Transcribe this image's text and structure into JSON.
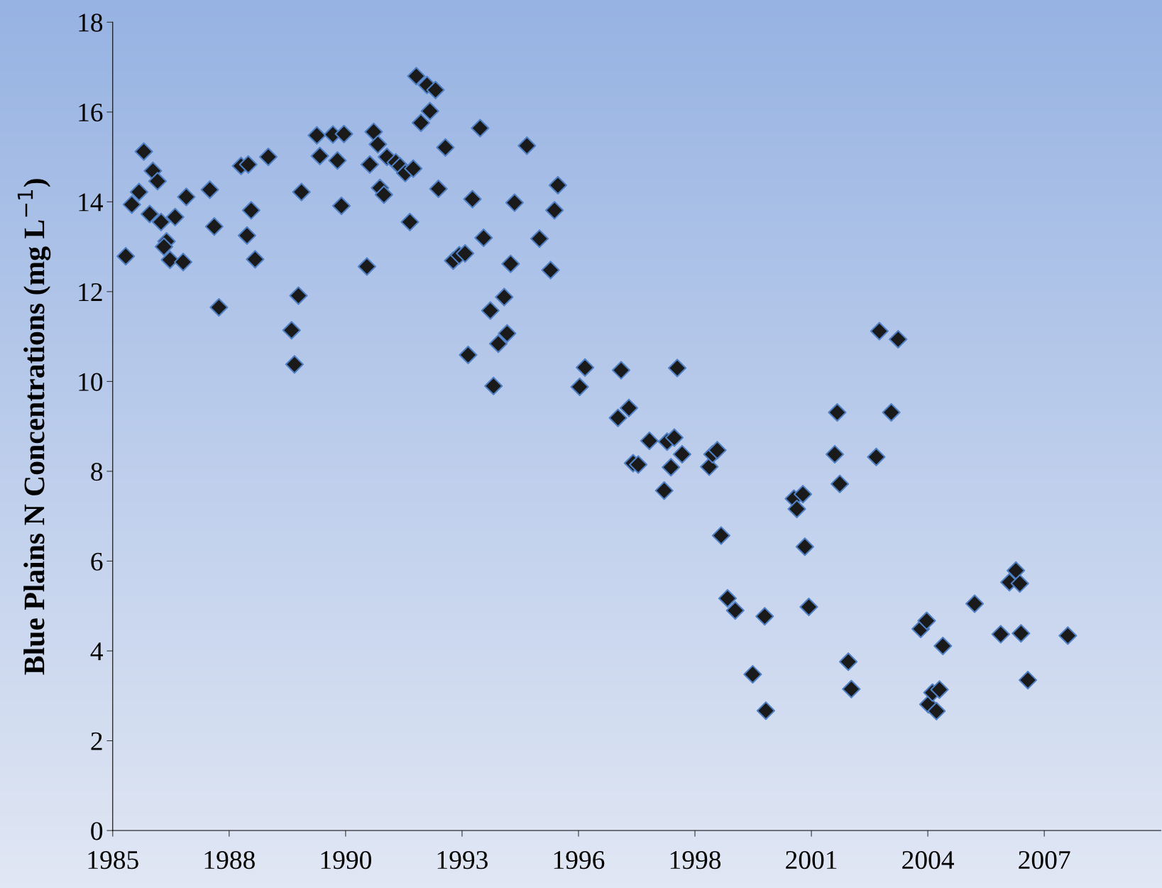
{
  "chart_data": {
    "type": "scatter",
    "ylabel": "Blue Plains N Concentrations (mg L$^{−1}$)",
    "x": [
      "1985-08-03",
      "1985-09-24",
      "1985-11-25",
      "1986-01-05",
      "1986-02-25",
      "1986-03-24",
      "1986-05-03",
      "1986-06-02",
      "1986-07-19",
      "1986-06-27",
      "1986-08-18",
      "1986-10-01",
      "1986-12-09",
      "1987-01-05",
      "1987-07-26",
      "1987-09-02",
      "1987-10-12",
      "1988-04-19",
      "1988-06-20",
      "1988-06-09",
      "1988-07-15",
      "1988-08-18",
      "1988-12-09",
      "1989-06-27",
      "1989-07-22",
      "1989-08-25",
      "1989-09-20",
      "1990-01-30",
      "1990-02-25",
      "1990-06-17",
      "1990-07-26",
      "1990-08-29",
      "1990-09-20",
      "1991-04-05",
      "1991-04-30",
      "1991-06-02",
      "1991-07-08",
      "1991-07-26",
      "1991-08-29",
      "1991-09-24",
      "1991-12-09",
      "1992-01-15",
      "1992-02-28",
      "1992-04-08",
      "1992-05-07",
      "1992-06-02",
      "1992-07-12",
      "1992-09-02",
      "1992-09-27",
      "1992-11-14",
      "1992-12-09",
      "1993-02-07",
      "1993-04-15",
      "1993-06-06",
      "1993-07-26",
      "1993-08-21",
      "1993-09-27",
      "1993-12-02",
      "1994-01-01",
      "1994-02-28",
      "1994-03-27",
      "1994-05-07",
      "1994-06-27",
      "1994-07-22",
      "1994-08-21",
      "1994-09-24",
      "1995-01-08",
      "1995-04-26",
      "1995-07-30",
      "1995-09-02",
      "1995-10-01",
      "1996-04-05",
      "1996-05-21",
      "1997-02-28",
      "1997-03-27",
      "1997-06-02",
      "1997-07-08",
      "1997-08-21",
      "1997-11-25",
      "1998-04-01",
      "1998-04-26",
      "1998-05-29",
      "1998-06-27",
      "1998-07-22",
      "1998-09-02",
      "1999-04-23",
      "1999-05-21",
      "1999-07-01",
      "1999-08-03",
      "1999-09-27",
      "1999-12-02",
      "2000-04-30",
      "2000-08-11",
      "2000-08-21",
      "2001-04-19",
      "2001-05-14",
      "2001-07-05",
      "2001-07-22",
      "2001-08-25",
      "2002-04-05",
      "2002-04-26",
      "2002-05-18",
      "2002-07-30",
      "2002-08-25",
      "2003-03-27",
      "2003-04-23",
      "2003-08-03",
      "2003-10-01",
      "2004-04-12",
      "2004-06-02",
      "2004-06-17",
      "2004-07-22",
      "2004-08-25",
      "2004-09-20",
      "2004-10-19",
      "2005-07-19",
      "2006-02-28",
      "2006-05-14",
      "2006-07-08",
      "2006-08-11",
      "2006-08-21",
      "2006-10-19",
      "2007-09-27"
    ],
    "series": [
      {
        "color": "#1a1a1a",
        "values": [
          12.79,
          13.94,
          14.22,
          15.12,
          13.73,
          14.69,
          14.46,
          13.55,
          13.12,
          13.0,
          12.71,
          13.66,
          12.66,
          14.11,
          14.27,
          13.45,
          11.65,
          14.8,
          14.83,
          13.25,
          13.81,
          12.72,
          15.0,
          11.14,
          10.38,
          11.91,
          14.22,
          15.48,
          15.02,
          15.5,
          14.92,
          13.91,
          15.51,
          12.56,
          14.83,
          15.56,
          15.28,
          14.31,
          14.16,
          15.0,
          14.88,
          14.79,
          14.64,
          13.55,
          14.74,
          16.8,
          15.76,
          16.6,
          16.02,
          16.49,
          14.29,
          15.21,
          12.69,
          12.81,
          12.85,
          10.59,
          14.06,
          15.64,
          13.2,
          11.58,
          9.9,
          10.84,
          11.88,
          11.07,
          12.62,
          13.98,
          15.25,
          13.18,
          12.48,
          13.81,
          14.37,
          9.88,
          10.31,
          9.19,
          10.25,
          9.41,
          8.18,
          8.15,
          8.68,
          7.57,
          8.66,
          8.09,
          8.75,
          10.3,
          8.38,
          8.1,
          8.38,
          8.47,
          6.57,
          5.17,
          4.9,
          3.48,
          4.77,
          2.67,
          7.39,
          7.16,
          7.49,
          6.32,
          4.98,
          8.38,
          9.31,
          7.72,
          3.76,
          3.15,
          8.32,
          11.12,
          9.31,
          10.94,
          4.49,
          4.67,
          2.81,
          3.07,
          2.66,
          3.14,
          4.11,
          5.05,
          4.37,
          5.53,
          5.79,
          5.5,
          4.39,
          3.35,
          4.34
        ]
      }
    ],
    "marker": "diamond",
    "grid": false,
    "xlim": [
      "1985-04-13",
      "2009-12-04"
    ],
    "xticks": [
      {
        "value": "1985-04-13",
        "label": "1985"
      },
      {
        "value": "1988-01-08",
        "label": "1988"
      },
      {
        "value": "1990-10-04",
        "label": "1990"
      },
      {
        "value": "1993-06-30",
        "label": "1993"
      },
      {
        "value": "1996-03-26",
        "label": "1996"
      },
      {
        "value": "1998-12-21",
        "label": "1998"
      },
      {
        "value": "2001-09-16",
        "label": "2001"
      },
      {
        "value": "2004-06-12",
        "label": "2004"
      },
      {
        "value": "2007-03-09",
        "label": "2007"
      }
    ],
    "ylim": [
      0,
      18
    ],
    "yticks": [
      0,
      2,
      4,
      6,
      8,
      10,
      12,
      14,
      16,
      18
    ]
  }
}
